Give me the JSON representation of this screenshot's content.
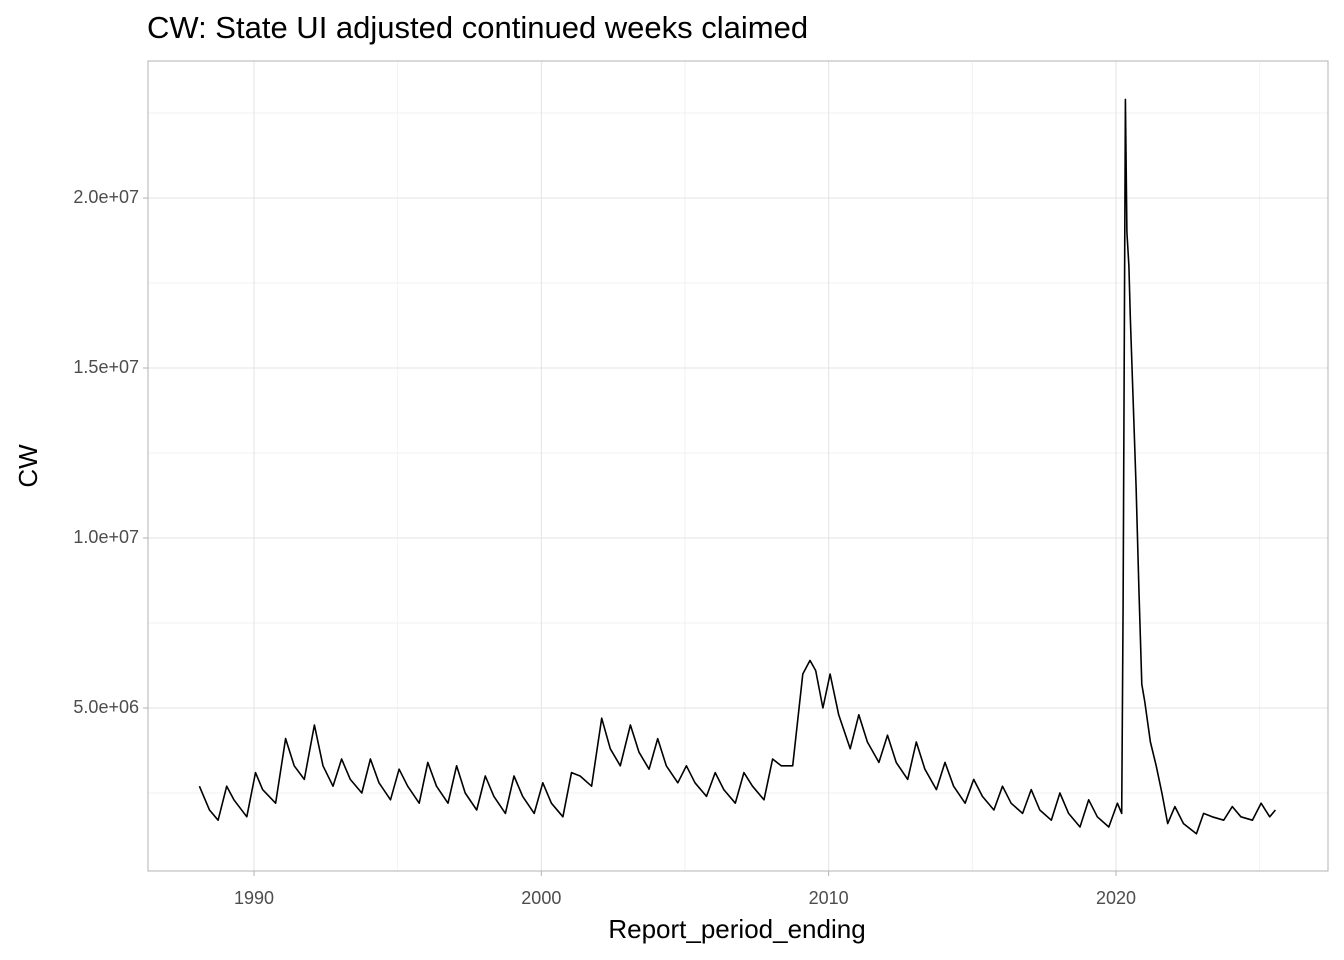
{
  "chart_data": {
    "type": "line",
    "title": "CW: State UI adjusted continued weeks claimed",
    "x_label": "Report_period_ending",
    "y_label": "CW",
    "xlim": [
      1986.31,
      2027.38
    ],
    "xticks": [
      1990,
      2000,
      2010,
      2020
    ],
    "x_minor_ticks": [
      1995,
      2005,
      2015,
      2025
    ],
    "ylim": [
      206000,
      24030000
    ],
    "yticks": [
      {
        "value": 5000000,
        "label": "5.0e+06"
      },
      {
        "value": 10000000,
        "label": "1.0e+07"
      },
      {
        "value": 15000000,
        "label": "1.5e+07"
      },
      {
        "value": 20000000,
        "label": "2.0e+07"
      }
    ],
    "y_minor_ticks": [
      2500000,
      7500000,
      12500000,
      17500000,
      22500000
    ],
    "grid": true,
    "series": [
      {
        "color": "#000000",
        "x": [
          1988.1,
          1988.45,
          1988.75,
          1989.05,
          1989.3,
          1989.75,
          1990.05,
          1990.3,
          1990.75,
          1991.1,
          1991.4,
          1991.75,
          1992.1,
          1992.4,
          1992.75,
          1993.05,
          1993.35,
          1993.75,
          1994.05,
          1994.35,
          1994.75,
          1995.05,
          1995.35,
          1995.75,
          1996.05,
          1996.35,
          1996.75,
          1997.05,
          1997.35,
          1997.75,
          1998.05,
          1998.35,
          1998.75,
          1999.05,
          1999.35,
          1999.75,
          2000.05,
          2000.35,
          2000.75,
          2001.05,
          2001.35,
          2001.75,
          2002.1,
          2002.4,
          2002.75,
          2003.1,
          2003.4,
          2003.75,
          2004.05,
          2004.35,
          2004.75,
          2005.05,
          2005.35,
          2005.75,
          2006.05,
          2006.35,
          2006.75,
          2007.05,
          2007.35,
          2007.75,
          2008.05,
          2008.35,
          2008.75,
          2009.1,
          2009.35,
          2009.55,
          2009.8,
          2010.05,
          2010.35,
          2010.75,
          2011.05,
          2011.35,
          2011.75,
          2012.05,
          2012.35,
          2012.75,
          2013.05,
          2013.35,
          2013.75,
          2014.05,
          2014.35,
          2014.75,
          2015.05,
          2015.35,
          2015.75,
          2016.05,
          2016.35,
          2016.75,
          2017.05,
          2017.35,
          2017.75,
          2018.05,
          2018.35,
          2018.75,
          2019.05,
          2019.35,
          2019.75,
          2020.05,
          2020.2,
          2020.25,
          2020.33,
          2020.38,
          2020.45,
          2020.5,
          2020.6,
          2020.7,
          2020.8,
          2020.9,
          2021.0,
          2021.2,
          2021.4,
          2021.6,
          2021.8,
          2022.05,
          2022.35,
          2022.8,
          2023.05,
          2023.35,
          2023.75,
          2024.05,
          2024.35,
          2024.75,
          2025.05,
          2025.35,
          2025.55
        ],
        "values": [
          2700000,
          2000000,
          1700000,
          2700000,
          2300000,
          1800000,
          3100000,
          2600000,
          2200000,
          4100000,
          3300000,
          2900000,
          4500000,
          3300000,
          2700000,
          3500000,
          2900000,
          2500000,
          3500000,
          2800000,
          2300000,
          3200000,
          2700000,
          2200000,
          3400000,
          2700000,
          2200000,
          3300000,
          2500000,
          2000000,
          3000000,
          2400000,
          1900000,
          3000000,
          2400000,
          1900000,
          2800000,
          2200000,
          1800000,
          3100000,
          3000000,
          2700000,
          4700000,
          3800000,
          3300000,
          4500000,
          3700000,
          3200000,
          4100000,
          3300000,
          2800000,
          3300000,
          2800000,
          2400000,
          3100000,
          2600000,
          2200000,
          3100000,
          2700000,
          2300000,
          3500000,
          3300000,
          3300000,
          6000000,
          6400000,
          6100000,
          5000000,
          6000000,
          4800000,
          3800000,
          4800000,
          4000000,
          3400000,
          4200000,
          3400000,
          2900000,
          4000000,
          3200000,
          2600000,
          3400000,
          2700000,
          2200000,
          2900000,
          2400000,
          2000000,
          2700000,
          2200000,
          1900000,
          2600000,
          2000000,
          1700000,
          2500000,
          1900000,
          1500000,
          2300000,
          1800000,
          1500000,
          2200000,
          1900000,
          8000000,
          22900000,
          19000000,
          18000000,
          16500000,
          14000000,
          11500000,
          8500000,
          5700000,
          5200000,
          4000000,
          3300000,
          2500000,
          1600000,
          2100000,
          1600000,
          1300000,
          1900000,
          1800000,
          1700000,
          2100000,
          1800000,
          1700000,
          2200000,
          1800000,
          2000000
        ]
      }
    ]
  }
}
